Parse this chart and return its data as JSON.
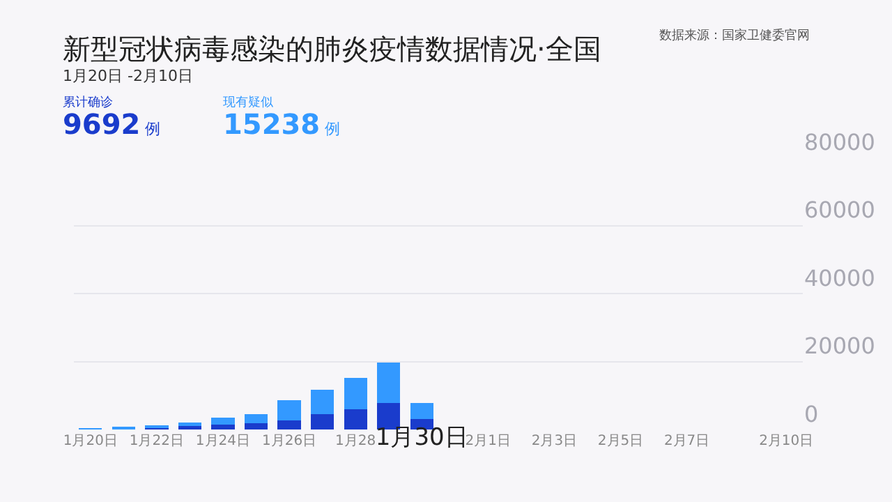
{
  "chart_data": {
    "type": "bar",
    "stacked": true,
    "title": "新型冠状病毒感染的肺炎疫情数据情况·全国",
    "subtitle": "1月20日 -2月10日",
    "annotations": [
      "数据来源：国家卫健委官网",
      "9692 例",
      "15238 例"
    ],
    "categories": [
      "1月20日",
      null,
      "1月22日",
      null,
      "1月24日",
      null,
      "1月26日",
      null,
      "1月28",
      null,
      "1月30日",
      null,
      "2月1日",
      null,
      "2月3日",
      null,
      "2月5日",
      null,
      "2月7日",
      null,
      null,
      "2月10日"
    ],
    "series": [
      {
        "name": "累计确诊",
        "color": "#1a3ccc",
        "values": [
          300,
          400,
          700,
          1000,
          1400,
          1900,
          2700,
          4500,
          6000,
          7800,
          3000,
          null,
          null,
          null,
          null,
          null,
          null,
          null,
          null,
          null,
          null,
          null
        ]
      },
      {
        "name": "现有疑似",
        "color": "#3399ff",
        "values": [
          100,
          300,
          400,
          1000,
          2000,
          2700,
          5900,
          7100,
          9100,
          11900,
          4800,
          null,
          null,
          null,
          null,
          null,
          null,
          null,
          null,
          null,
          null,
          null
        ]
      }
    ],
    "ylim": [
      0,
      80000
    ],
    "yticks": [
      0,
      20000,
      40000,
      60000,
      80000
    ],
    "grid": "y",
    "legend": false
  }
}
